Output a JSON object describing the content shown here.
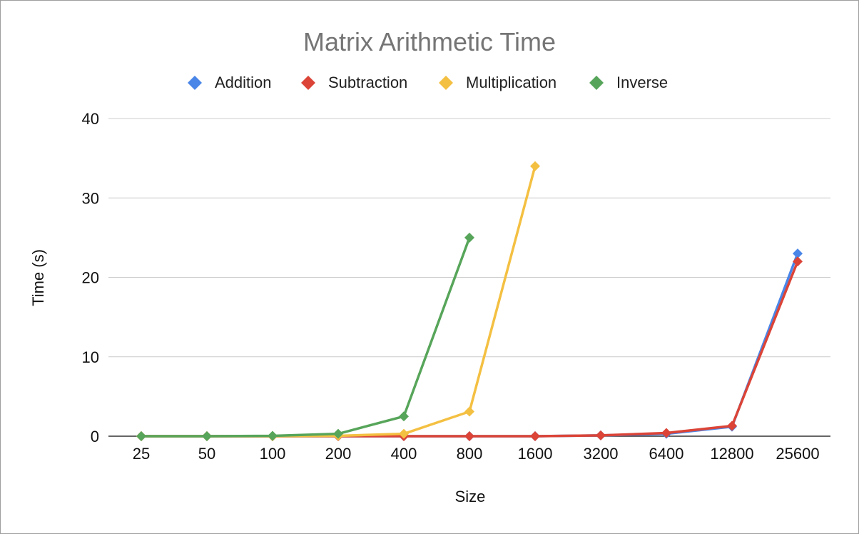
{
  "chart_data": {
    "type": "line",
    "title": "Matrix Arithmetic Time",
    "xlabel": "Size",
    "ylabel": "Time (s)",
    "categories": [
      "25",
      "50",
      "100",
      "200",
      "400",
      "800",
      "1600",
      "3200",
      "6400",
      "12800",
      "25600"
    ],
    "ylim": [
      0,
      40
    ],
    "yticks": [
      "0",
      "10",
      "20",
      "30",
      "40"
    ],
    "grid": true,
    "legend_position": "top",
    "series": [
      {
        "name": "Addition",
        "color": "#4a86e8",
        "marker": "diamond",
        "values": [
          0,
          0,
          0,
          0,
          0,
          0,
          0,
          0.1,
          0.3,
          1.2,
          23
        ]
      },
      {
        "name": "Subtraction",
        "color": "#db4437",
        "marker": "diamond",
        "values": [
          0,
          0,
          0,
          0,
          0,
          0,
          0,
          0.1,
          0.4,
          1.3,
          22
        ]
      },
      {
        "name": "Multiplication",
        "color": "#f4c042",
        "marker": "diamond",
        "values": [
          0,
          0,
          0,
          0.05,
          0.3,
          3.1,
          34,
          null,
          null,
          null,
          null
        ]
      },
      {
        "name": "Inverse",
        "color": "#57a55a",
        "marker": "diamond",
        "values": [
          0,
          0,
          0.05,
          0.3,
          2.5,
          25,
          null,
          null,
          null,
          null,
          null
        ]
      }
    ]
  }
}
